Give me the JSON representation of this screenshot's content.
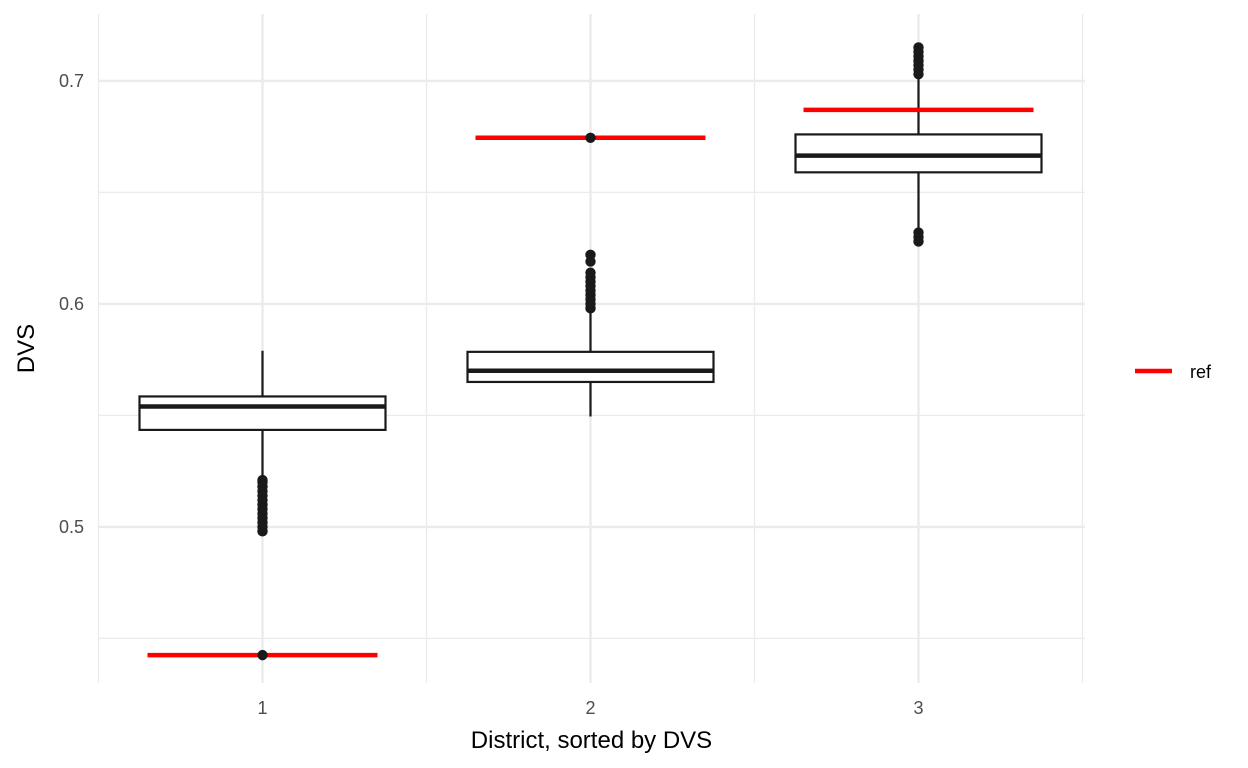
{
  "chart_data": {
    "type": "boxplot",
    "xlabel": "District, sorted by DVS",
    "ylabel": "DVS",
    "categories": [
      "1",
      "2",
      "3"
    ],
    "y_ticks": [
      "0.5",
      "0.6",
      "0.7"
    ],
    "ylim": [
      0.43,
      0.73
    ],
    "grid": true,
    "legend": {
      "placement": "right",
      "entries": [
        "ref"
      ]
    },
    "colors": {
      "ref": "#ff0000",
      "box": "#1a1a1a",
      "grid": "#ebebeb"
    },
    "boxes": [
      {
        "category": "1",
        "whisker_low": 0.5225,
        "q1": 0.5435,
        "median": 0.554,
        "q3": 0.5585,
        "whisker_high": 0.579,
        "outliers": [
          0.498,
          0.5,
          0.502,
          0.504,
          0.506,
          0.508,
          0.51,
          0.512,
          0.514,
          0.516,
          0.518,
          0.52,
          0.521
        ]
      },
      {
        "category": "2",
        "whisker_low": 0.5495,
        "q1": 0.565,
        "median": 0.57,
        "q3": 0.5785,
        "whisker_high": 0.5975,
        "outliers": [
          0.598,
          0.6,
          0.602,
          0.604,
          0.606,
          0.608,
          0.61,
          0.612,
          0.614,
          0.619,
          0.622
        ]
      },
      {
        "category": "3",
        "whisker_low": 0.6335,
        "q1": 0.659,
        "median": 0.6665,
        "q3": 0.676,
        "whisker_high": 0.7025,
        "outliers": [
          0.628,
          0.63,
          0.632,
          0.703,
          0.705,
          0.707,
          0.709,
          0.711,
          0.713,
          0.715
        ]
      }
    ],
    "ref": [
      {
        "category": "1",
        "value": 0.4425
      },
      {
        "category": "2",
        "value": 0.6745
      },
      {
        "category": "3",
        "value": 0.687
      }
    ],
    "extra_points": [
      {
        "category": "1",
        "value": 0.4425
      },
      {
        "category": "2",
        "value": 0.6745
      }
    ]
  }
}
